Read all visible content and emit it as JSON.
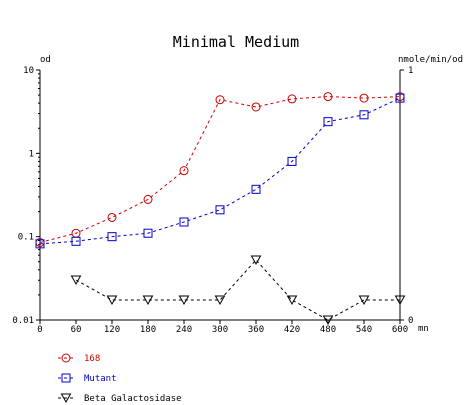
{
  "chart_data": {
    "type": "line",
    "title": "Minimal Medium",
    "xlabel": "mn",
    "ylabel_left": "od",
    "ylabel_right": "nmole/min/od",
    "x_ticks": [
      "0",
      "60",
      "120",
      "180",
      "240",
      "300",
      "360",
      "420",
      "480",
      "540",
      "600"
    ],
    "y_left_ticks": [
      "10",
      "1",
      "0.1",
      "0.01"
    ],
    "y_right_ticks": [
      "1",
      "0"
    ],
    "xlim": [
      0,
      600
    ],
    "ylim_left": [
      0.01,
      10
    ],
    "ylim_left_scale": "log",
    "ylim_right": [
      0,
      1
    ],
    "grid": false,
    "legend_position": "bottom-left",
    "series": [
      {
        "name": "168",
        "axis": "left",
        "color": "#cc0000",
        "marker": "circle",
        "x": [
          0,
          60,
          120,
          180,
          240,
          300,
          360,
          420,
          480,
          540,
          600
        ],
        "values": [
          0.085,
          0.11,
          0.17,
          0.28,
          0.62,
          4.4,
          3.6,
          4.5,
          4.8,
          4.6,
          4.8
        ]
      },
      {
        "name": "Mutant",
        "axis": "left",
        "color": "#0000cc",
        "marker": "square",
        "x": [
          0,
          60,
          120,
          180,
          240,
          300,
          360,
          420,
          480,
          540,
          600
        ],
        "values": [
          0.082,
          0.088,
          0.1,
          0.11,
          0.15,
          0.21,
          0.37,
          0.8,
          2.4,
          2.9,
          4.6
        ]
      },
      {
        "name": "Beta Galactosidase",
        "axis": "right",
        "color": "#000000",
        "marker": "triangle-down",
        "x": [
          60,
          120,
          180,
          240,
          300,
          360,
          420,
          480,
          540,
          600
        ],
        "values": [
          0.16,
          0.08,
          0.08,
          0.08,
          0.08,
          0.24,
          0.08,
          0.0,
          0.08,
          0.08
        ]
      }
    ]
  }
}
